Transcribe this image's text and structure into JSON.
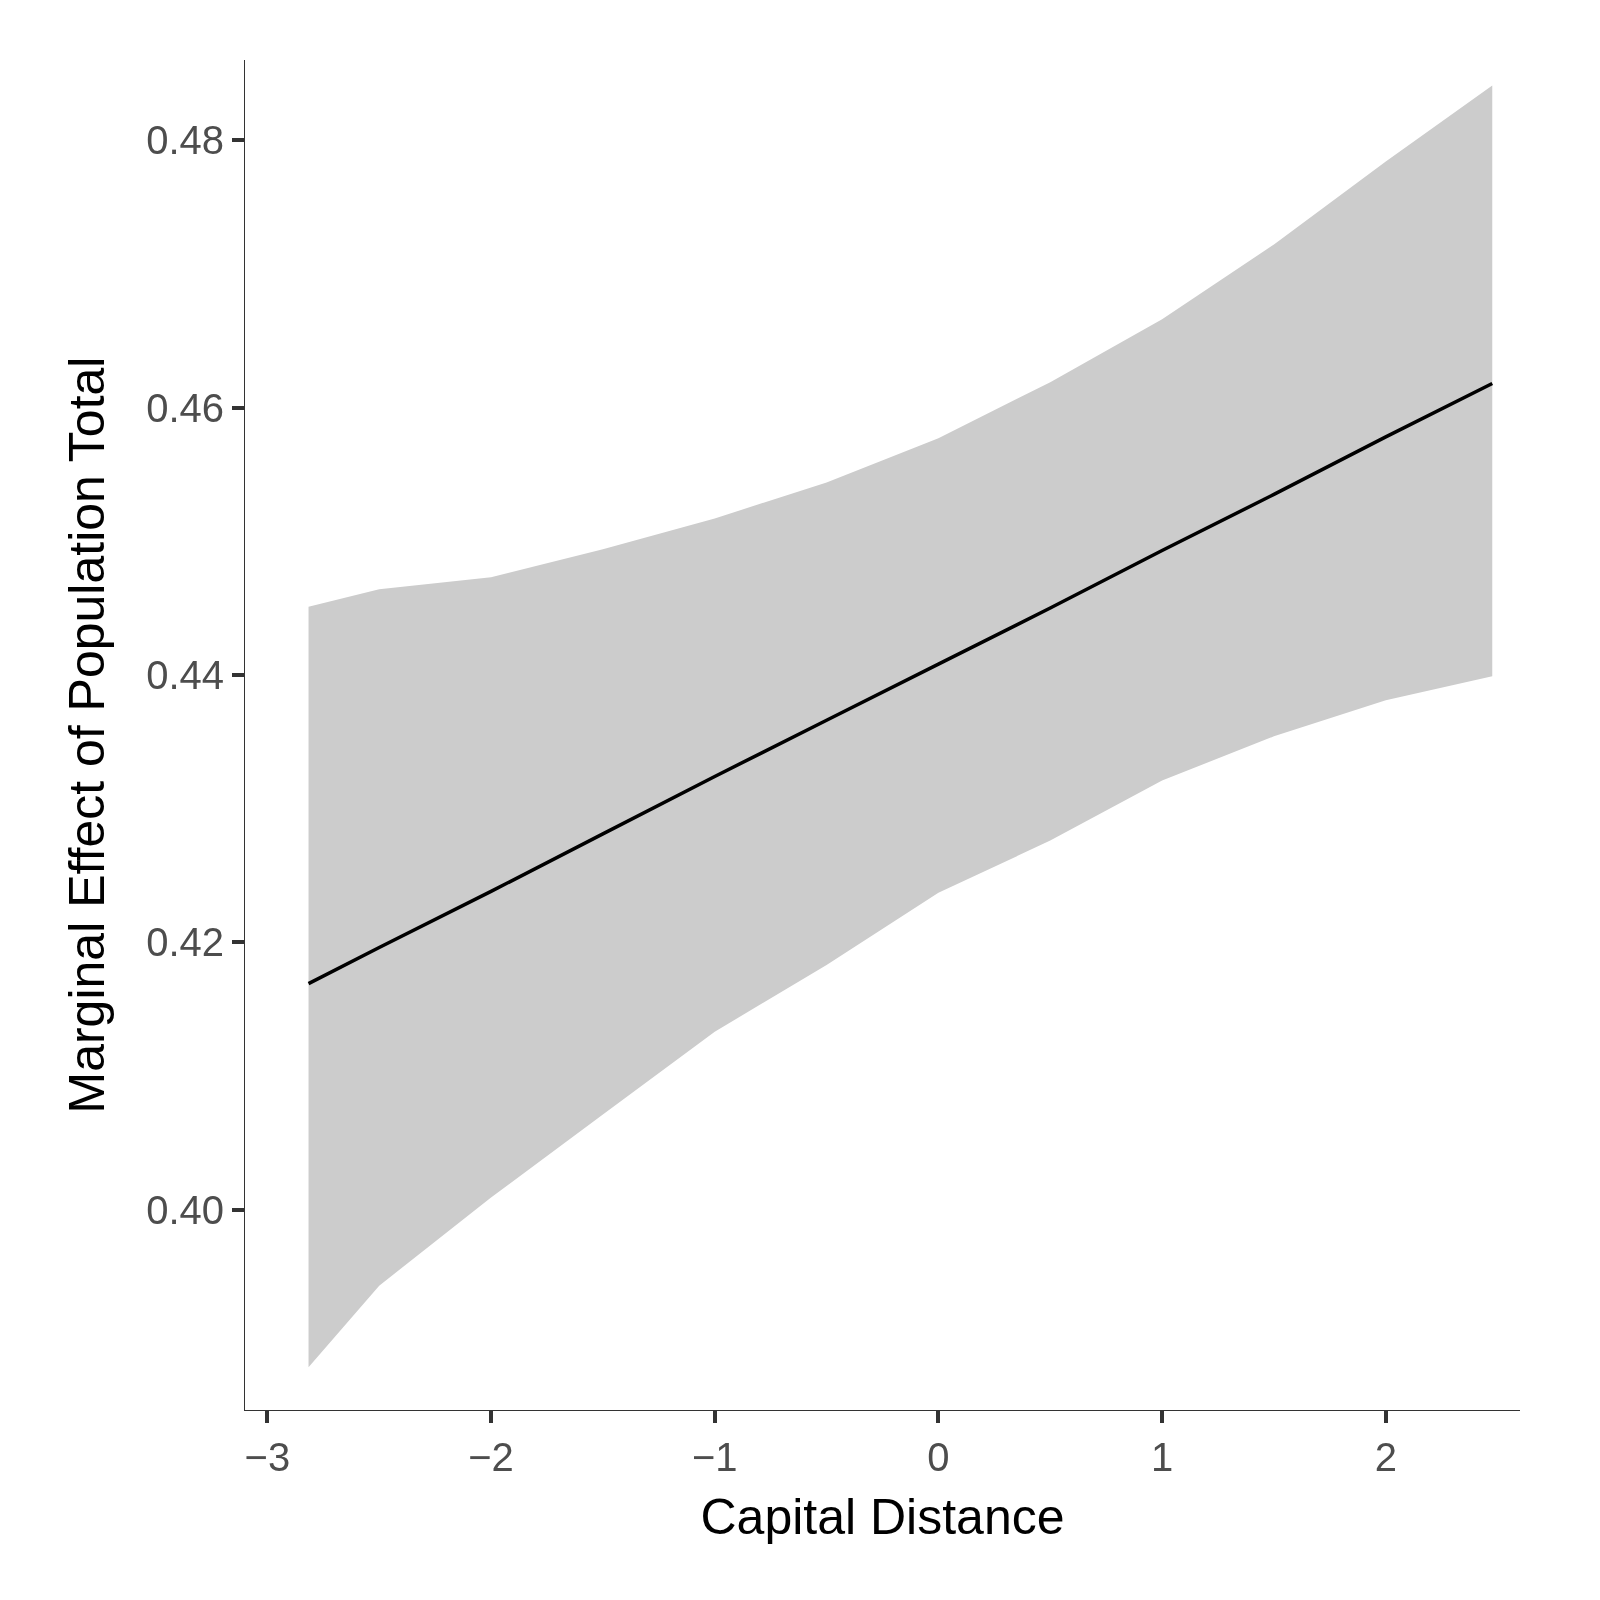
{
  "chart_data": {
    "type": "line",
    "xlabel": "Capital Distance",
    "ylabel": "Marginal Effect of Population Total",
    "xlim": [
      -3.1,
      2.6
    ],
    "xticks": [
      {
        "value": -3,
        "label": "−3"
      },
      {
        "value": -2,
        "label": "−2"
      },
      {
        "value": -1,
        "label": "−1"
      },
      0,
      1,
      2
    ],
    "ylim": [
      0.385,
      0.486
    ],
    "yticks": [
      {
        "value": 0.4,
        "label": "0.40"
      },
      {
        "value": 0.42,
        "label": "0.42"
      },
      {
        "value": 0.44,
        "label": "0.44"
      },
      {
        "value": 0.46,
        "label": "0.46"
      },
      {
        "value": 0.48,
        "label": "0.48"
      }
    ],
    "series": [
      {
        "color": "#000000",
        "x": [
          -2.816,
          -2.5,
          -2,
          -1.5,
          -1,
          -0.5,
          0,
          0.5,
          1,
          1.5,
          2,
          2.476
        ],
        "values": [
          0.4169,
          0.4196,
          0.4238,
          0.4281,
          0.4324,
          0.4366,
          0.4408,
          0.445,
          0.4493,
          0.4535,
          0.4578,
          0.4618
        ],
        "lower": [
          0.3882,
          0.3943,
          0.4009,
          0.4071,
          0.4133,
          0.4183,
          0.4237,
          0.4276,
          0.4321,
          0.4354,
          0.4381,
          0.4399
        ],
        "upper": [
          0.4451,
          0.4464,
          0.4473,
          0.4494,
          0.4517,
          0.4544,
          0.4577,
          0.4619,
          0.4666,
          0.4722,
          0.4784,
          0.4841
        ]
      }
    ]
  }
}
